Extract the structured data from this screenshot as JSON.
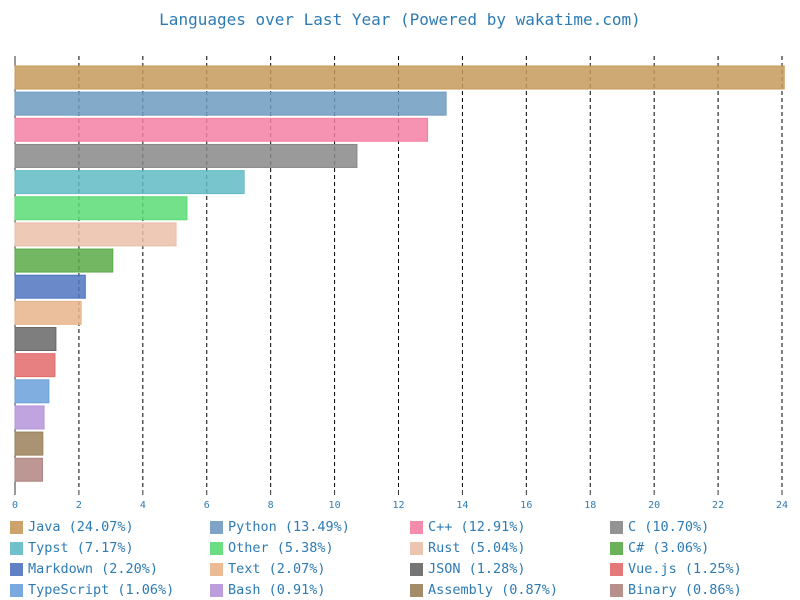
{
  "chart_data": {
    "type": "bar",
    "orientation": "horizontal",
    "title": "Languages over Last Year (Powered by wakatime.com)",
    "xlabel": "",
    "ylabel": "",
    "xlim": [
      0,
      24
    ],
    "xticks": [
      "0",
      "2",
      "4",
      "6",
      "8",
      "10",
      "12",
      "14",
      "16",
      "18",
      "20",
      "22",
      "24"
    ],
    "grid": true,
    "legend_position": "bottom",
    "categories": [
      "Java",
      "Python",
      "C++",
      "C",
      "Typst",
      "Other",
      "Rust",
      "C#",
      "Markdown",
      "Text",
      "JSON",
      "Vue.js",
      "TypeScript",
      "Bash",
      "Assembly",
      "Binary"
    ],
    "values": [
      24.07,
      13.49,
      12.91,
      10.7,
      7.17,
      5.38,
      5.04,
      3.06,
      2.2,
      2.07,
      1.28,
      1.25,
      1.06,
      0.91,
      0.87,
      0.86
    ],
    "legend_labels": [
      "Java (24.07%)",
      "Python (13.49%)",
      "C++ (12.91%)",
      "C (10.70%)",
      "Typst (7.17%)",
      "Other (5.38%)",
      "Rust (5.04%)",
      "C# (3.06%)",
      "Markdown (2.20%)",
      "Text (2.07%)",
      "JSON (1.28%)",
      "Vue.js (1.25%)",
      "TypeScript (1.06%)",
      "Bash (0.91%)",
      "Assembly (0.87%)",
      "Binary (0.86%)"
    ],
    "colors": [
      "#c79a5a",
      "#6f9bc1",
      "#f580a4",
      "#888888",
      "#62bbc6",
      "#5bdb76",
      "#eabfa9",
      "#5aaa48",
      "#4f74c0",
      "#e8b489",
      "#676767",
      "#e36a6a",
      "#6ba0dc",
      "#b594d9",
      "#9a8059",
      "#b08580"
    ]
  }
}
